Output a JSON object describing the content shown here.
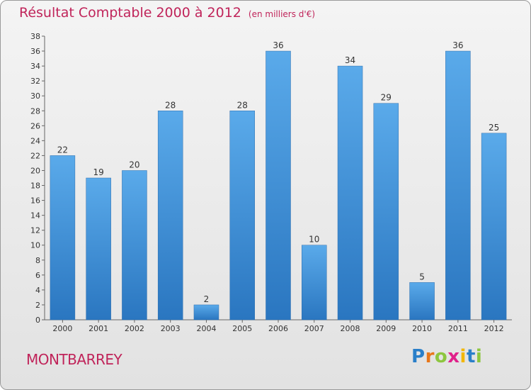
{
  "chart_data": {
    "type": "bar",
    "title": "Résultat Comptable 2000 à 2012",
    "subtitle": "(en milliers d'€)",
    "categories": [
      "2000",
      "2001",
      "2002",
      "2003",
      "2004",
      "2005",
      "2006",
      "2007",
      "2008",
      "2009",
      "2010",
      "2011",
      "2012"
    ],
    "values": [
      22,
      19,
      20,
      28,
      2,
      28,
      36,
      10,
      34,
      29,
      5,
      36,
      25
    ],
    "ylim": [
      0,
      38
    ],
    "yticks": [
      0,
      2,
      4,
      6,
      8,
      10,
      12,
      14,
      16,
      18,
      20,
      22,
      24,
      26,
      28,
      30,
      32,
      34,
      36,
      38
    ],
    "xlabel": "",
    "ylabel": "",
    "grid": false,
    "bar_color": "#3d8fd6"
  },
  "commune": "MONTBARREY",
  "logo": {
    "letters": [
      "P",
      "r",
      "o",
      "x",
      "i",
      "t",
      "i"
    ],
    "colors": [
      "#2a7fc9",
      "#e8771a",
      "#8dc63f",
      "#e0218a",
      "#f2b705",
      "#2a7fc9",
      "#8dc63f"
    ]
  }
}
